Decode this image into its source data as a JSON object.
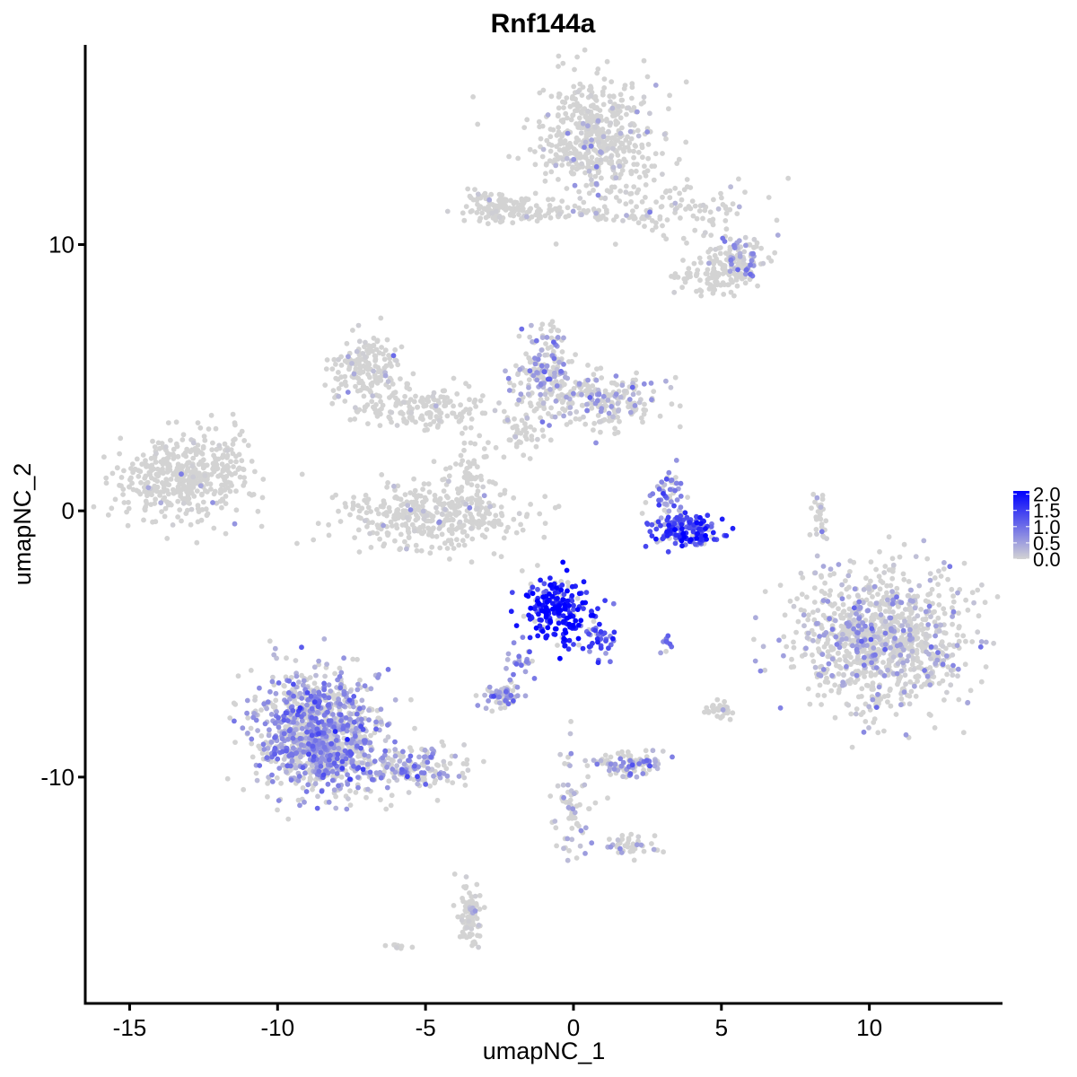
{
  "chart_data": {
    "type": "scatter",
    "title": "Rnf144a",
    "xlabel": "umapNC_1",
    "ylabel": "umapNC_2",
    "xlim": [
      -16.5,
      14.5
    ],
    "ylim": [
      -18.5,
      17.5
    ],
    "xticks": [
      -15,
      -10,
      -5,
      0,
      5,
      10
    ],
    "xtick_labels": [
      "-15",
      "-10",
      "-5",
      "0",
      "5",
      "10"
    ],
    "yticks": [
      -10,
      0,
      10
    ],
    "ytick_labels": [
      "-10",
      "0",
      "10"
    ],
    "grid": false,
    "legend_position": "right",
    "color_scale": {
      "low": "#d3d3d3",
      "high": "#0000ff",
      "min": 0.0,
      "max": 2.1,
      "breaks": [
        2.0,
        1.5,
        1.0,
        0.5,
        0.0
      ],
      "break_labels": [
        "2.0",
        "1.5",
        "1.0",
        "0.5",
        "0.0"
      ]
    },
    "clusters": [
      {
        "cx": 0.8,
        "cy": 14.0,
        "sx": 1.0,
        "sy": 1.1,
        "n": 520,
        "mean_expr": 0.08
      },
      {
        "cx": 3.5,
        "cy": 11.3,
        "sx": 1.5,
        "sy": 0.6,
        "n": 120,
        "mean_expr": 0.06
      },
      {
        "cx": -2.5,
        "cy": 11.4,
        "sx": 0.6,
        "sy": 0.3,
        "n": 110,
        "mean_expr": 0.02
      },
      {
        "cx": -0.5,
        "cy": 11.2,
        "sx": 1.2,
        "sy": 0.2,
        "n": 60,
        "mean_expr": 0.05
      },
      {
        "cx": 5.6,
        "cy": 9.5,
        "sx": 0.5,
        "sy": 0.4,
        "n": 110,
        "mean_expr": 0.35
      },
      {
        "cx": 4.8,
        "cy": 8.9,
        "sx": 0.6,
        "sy": 0.4,
        "n": 90,
        "mean_expr": 0.03
      },
      {
        "cx": -13.3,
        "cy": 1.2,
        "sx": 1.1,
        "sy": 0.8,
        "n": 420,
        "mean_expr": 0.02
      },
      {
        "cx": -11.7,
        "cy": 1.9,
        "sx": 0.4,
        "sy": 0.7,
        "n": 40,
        "mean_expr": 0.02
      },
      {
        "cx": -7.0,
        "cy": 5.3,
        "sx": 0.6,
        "sy": 0.7,
        "n": 180,
        "mean_expr": 0.05
      },
      {
        "cx": -5.0,
        "cy": 3.9,
        "sx": 1.0,
        "sy": 0.4,
        "n": 150,
        "mean_expr": 0.05
      },
      {
        "cx": -4.8,
        "cy": -0.2,
        "sx": 1.5,
        "sy": 0.6,
        "n": 380,
        "mean_expr": 0.08
      },
      {
        "cx": -3.5,
        "cy": 1.3,
        "sx": 0.4,
        "sy": 0.8,
        "n": 60,
        "mean_expr": 0.05
      },
      {
        "cx": -1.0,
        "cy": 5.3,
        "sx": 0.5,
        "sy": 0.8,
        "n": 170,
        "mean_expr": 0.35
      },
      {
        "cx": 1.0,
        "cy": 4.2,
        "sx": 1.0,
        "sy": 0.5,
        "n": 220,
        "mean_expr": 0.25
      },
      {
        "cx": -1.8,
        "cy": 3.0,
        "sx": 0.4,
        "sy": 0.5,
        "n": 40,
        "mean_expr": 0.05
      },
      {
        "cx": 3.8,
        "cy": -0.8,
        "sx": 0.6,
        "sy": 0.3,
        "n": 150,
        "mean_expr": 1.1
      },
      {
        "cx": 3.2,
        "cy": 0.4,
        "sx": 0.3,
        "sy": 0.6,
        "n": 60,
        "mean_expr": 0.5
      },
      {
        "cx": -0.6,
        "cy": -3.7,
        "sx": 0.6,
        "sy": 0.6,
        "n": 210,
        "mean_expr": 1.4
      },
      {
        "cx": 0.8,
        "cy": -4.9,
        "sx": 0.3,
        "sy": 0.4,
        "n": 40,
        "mean_expr": 1.0
      },
      {
        "cx": -2.4,
        "cy": -6.9,
        "sx": 0.3,
        "sy": 0.2,
        "n": 60,
        "mean_expr": 0.5
      },
      {
        "cx": -1.8,
        "cy": -5.7,
        "sx": 0.2,
        "sy": 0.5,
        "n": 25,
        "mean_expr": 0.6
      },
      {
        "cx": 10.4,
        "cy": -4.8,
        "sx": 1.4,
        "sy": 1.3,
        "n": 1000,
        "mean_expr": 0.25
      },
      {
        "cx": 8.3,
        "cy": -0.2,
        "sx": 0.15,
        "sy": 0.6,
        "n": 30,
        "mean_expr": 0.02
      },
      {
        "cx": -8.6,
        "cy": -8.3,
        "sx": 1.0,
        "sy": 1.1,
        "n": 1200,
        "mean_expr": 0.45
      },
      {
        "cx": -5.3,
        "cy": -9.7,
        "sx": 0.9,
        "sy": 0.4,
        "n": 170,
        "mean_expr": 0.35
      },
      {
        "cx": 2.0,
        "cy": -9.5,
        "sx": 0.6,
        "sy": 0.2,
        "n": 110,
        "mean_expr": 0.35
      },
      {
        "cx": 0.0,
        "cy": -11.3,
        "sx": 0.3,
        "sy": 1.1,
        "n": 70,
        "mean_expr": 0.25
      },
      {
        "cx": 1.9,
        "cy": -12.6,
        "sx": 0.5,
        "sy": 0.2,
        "n": 40,
        "mean_expr": 0.25
      },
      {
        "cx": -3.5,
        "cy": -15.1,
        "sx": 0.2,
        "sy": 0.6,
        "n": 90,
        "mean_expr": 0.05
      },
      {
        "cx": 5.0,
        "cy": -7.5,
        "sx": 0.3,
        "sy": 0.15,
        "n": 30,
        "mean_expr": 0.05
      },
      {
        "cx": 3.2,
        "cy": -5.0,
        "sx": 0.15,
        "sy": 0.15,
        "n": 10,
        "mean_expr": 0.5
      },
      {
        "cx": -6.0,
        "cy": -16.4,
        "sx": 0.2,
        "sy": 0.1,
        "n": 10,
        "mean_expr": 0.02
      }
    ]
  }
}
